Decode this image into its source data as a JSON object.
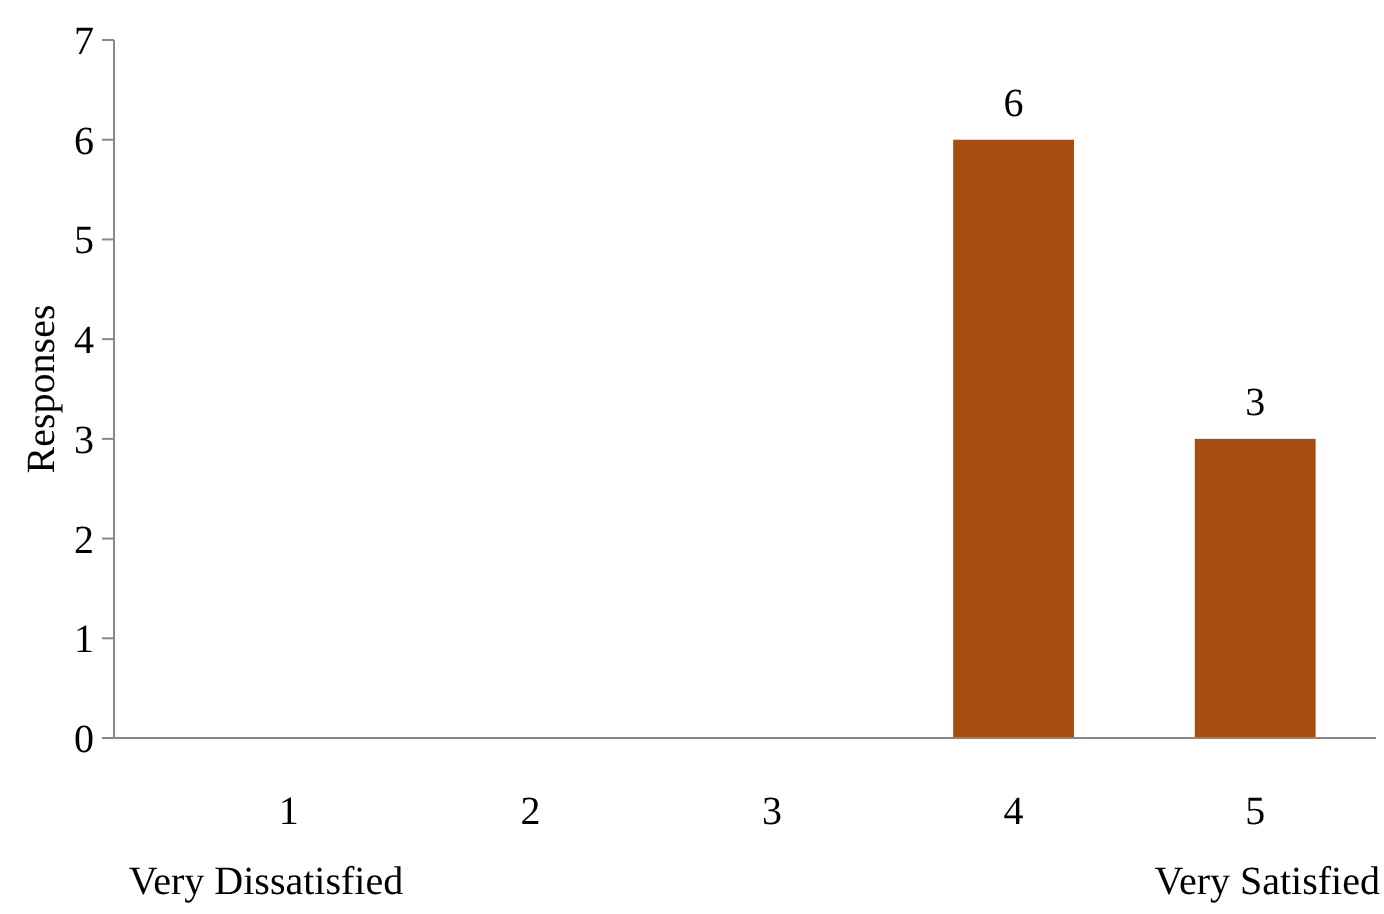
{
  "chart_data": {
    "type": "bar",
    "ylabel": "Responses",
    "categories": [
      "1",
      "2",
      "3",
      "4",
      "5"
    ],
    "values": [
      0,
      0,
      0,
      6,
      3
    ],
    "color": "#a64d11",
    "value_labels": [
      null,
      null,
      null,
      "6",
      "3"
    ],
    "ylim": [
      0,
      7
    ],
    "yticks": [
      0,
      1,
      2,
      3,
      4,
      5,
      6,
      7
    ],
    "grid": false,
    "annotations": [
      "Very Dissatisfied",
      "Very Satisfied"
    ]
  }
}
